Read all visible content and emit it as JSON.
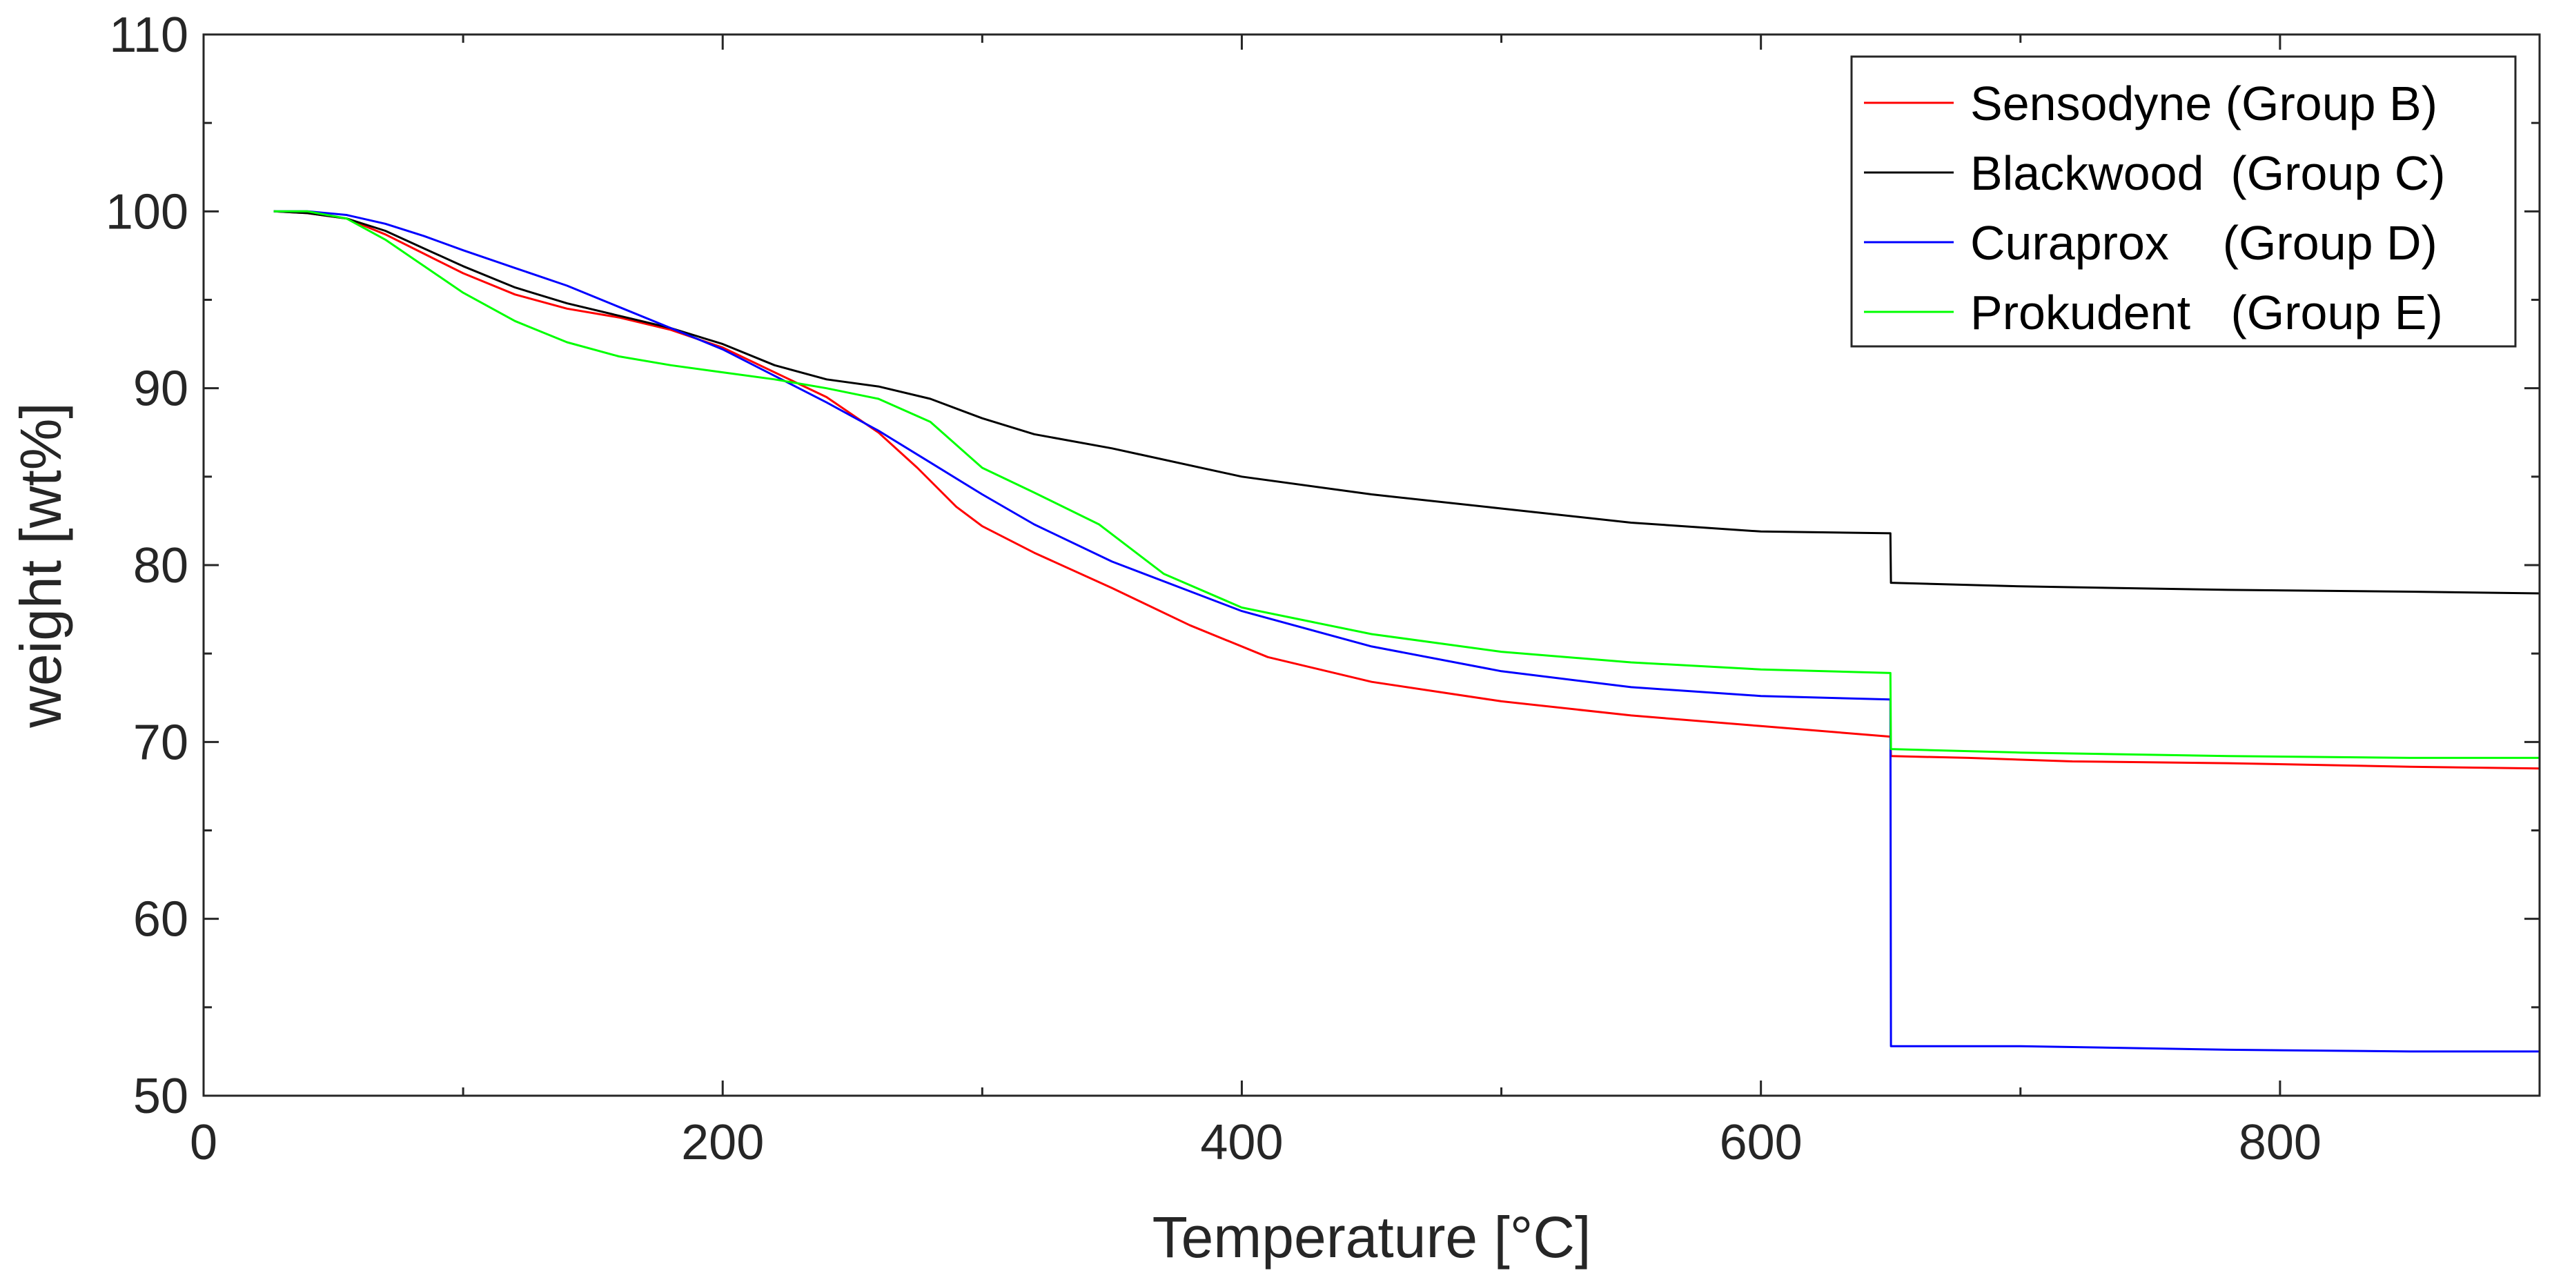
{
  "chart_data": {
    "type": "line",
    "title": "",
    "xlabel": "Temperature [°C]",
    "ylabel": "weight [wt%]",
    "xlim": [
      0,
      900
    ],
    "ylim": [
      50,
      110
    ],
    "xticks": [
      0,
      200,
      400,
      600,
      800
    ],
    "yticks": [
      50,
      60,
      70,
      80,
      90,
      100,
      110
    ],
    "grid": false,
    "legend_position": "top-right",
    "series": [
      {
        "name": "Sensodyne (Group B)",
        "color": "#ff0000",
        "x": [
          27,
          40,
          55,
          70,
          85,
          100,
          120,
          140,
          160,
          180,
          200,
          220,
          240,
          260,
          275,
          290,
          300,
          320,
          350,
          380,
          410,
          450,
          500,
          550,
          600,
          649.9,
          650.1,
          680,
          720,
          780,
          850,
          900
        ],
        "y": [
          100,
          99.9,
          99.6,
          98.7,
          97.6,
          96.5,
          95.3,
          94.5,
          94,
          93.3,
          92.3,
          90.9,
          89.5,
          87.5,
          85.5,
          83.3,
          82.2,
          80.7,
          78.7,
          76.6,
          74.8,
          73.4,
          72.3,
          71.5,
          70.9,
          70.3,
          69.2,
          69.1,
          68.9,
          68.8,
          68.6,
          68.5
        ]
      },
      {
        "name": "Blackwood  (Group C)",
        "color": "#000000",
        "x": [
          27,
          40,
          55,
          70,
          85,
          100,
          120,
          140,
          160,
          180,
          200,
          220,
          240,
          260,
          280,
          300,
          320,
          350,
          400,
          450,
          500,
          550,
          600,
          649.9,
          650.1,
          700,
          780,
          850,
          900
        ],
        "y": [
          100,
          99.9,
          99.6,
          98.9,
          97.9,
          96.9,
          95.7,
          94.8,
          94.1,
          93.4,
          92.5,
          91.3,
          90.5,
          90.1,
          89.4,
          88.3,
          87.4,
          86.6,
          85,
          84,
          83.2,
          82.4,
          81.9,
          81.8,
          79,
          78.8,
          78.6,
          78.5,
          78.4
        ]
      },
      {
        "name": "Curaprox    (Group D)",
        "color": "#0000ff",
        "x": [
          27,
          40,
          55,
          70,
          85,
          100,
          120,
          140,
          160,
          180,
          200,
          220,
          240,
          260,
          280,
          300,
          320,
          350,
          400,
          450,
          500,
          550,
          600,
          649.9,
          650.1,
          700,
          780,
          850,
          900
        ],
        "y": [
          100,
          100,
          99.8,
          99.3,
          98.6,
          97.8,
          96.8,
          95.8,
          94.6,
          93.4,
          92.2,
          90.7,
          89.2,
          87.6,
          85.8,
          84,
          82.3,
          80.2,
          77.4,
          75.4,
          74,
          73.1,
          72.6,
          72.4,
          52.8,
          52.8,
          52.6,
          52.5,
          52.5
        ]
      },
      {
        "name": "Prokudent   (Group E)",
        "color": "#00ff00",
        "x": [
          27,
          40,
          55,
          70,
          85,
          100,
          120,
          140,
          160,
          180,
          200,
          220,
          240,
          260,
          280,
          300,
          320,
          345,
          370,
          400,
          450,
          500,
          550,
          600,
          649.9,
          650.1,
          700,
          780,
          850,
          900
        ],
        "y": [
          100,
          100,
          99.6,
          98.4,
          96.9,
          95.4,
          93.8,
          92.6,
          91.8,
          91.3,
          90.9,
          90.5,
          90,
          89.4,
          88.1,
          85.5,
          84.1,
          82.3,
          79.5,
          77.6,
          76.1,
          75.1,
          74.5,
          74.1,
          73.9,
          69.6,
          69.4,
          69.2,
          69.1,
          69.1
        ]
      }
    ]
  }
}
